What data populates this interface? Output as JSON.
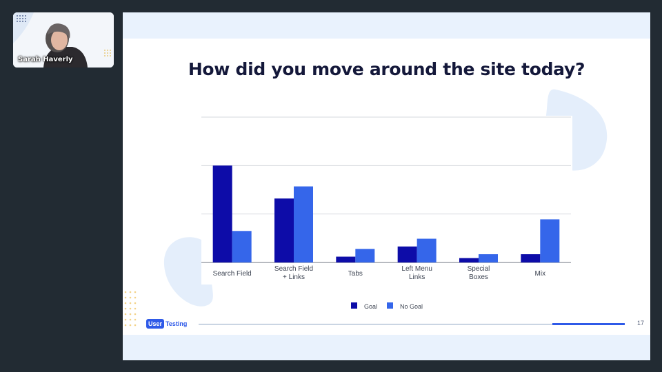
{
  "video": {
    "participant_name": "Sarah Haverly"
  },
  "slide": {
    "title": "How did you move around the site today?",
    "page_number": "17",
    "progress_fraction": 0.17,
    "logo": {
      "box_text": "User",
      "text": "Testing"
    }
  },
  "colors": {
    "background": "#222b33",
    "goal": "#0d0ca8",
    "no_goal": "#3566ea",
    "band": "#e9f2fd",
    "title": "#14183a",
    "dots": "#f3d38a"
  },
  "chart_data": {
    "type": "bar",
    "title": "How did you move around the site today?",
    "categories": [
      "Search Field",
      "Search Field\n+ Links",
      "Tabs",
      "Left Menu\nLinks",
      "Special\nBoxes",
      "Mix"
    ],
    "series": [
      {
        "name": "Goal",
        "color": "#0d0ca8",
        "values": [
          20,
          13.2,
          1.2,
          3.3,
          0.9,
          1.7
        ]
      },
      {
        "name": "No Goal",
        "color": "#3566ea",
        "values": [
          6.5,
          15.7,
          2.8,
          4.9,
          1.7,
          8.9
        ]
      }
    ],
    "ylim": [
      0,
      30
    ],
    "gridlines": [
      10,
      20,
      30
    ],
    "grid": true,
    "legend": "bottom",
    "xlabel": "",
    "ylabel": ""
  }
}
